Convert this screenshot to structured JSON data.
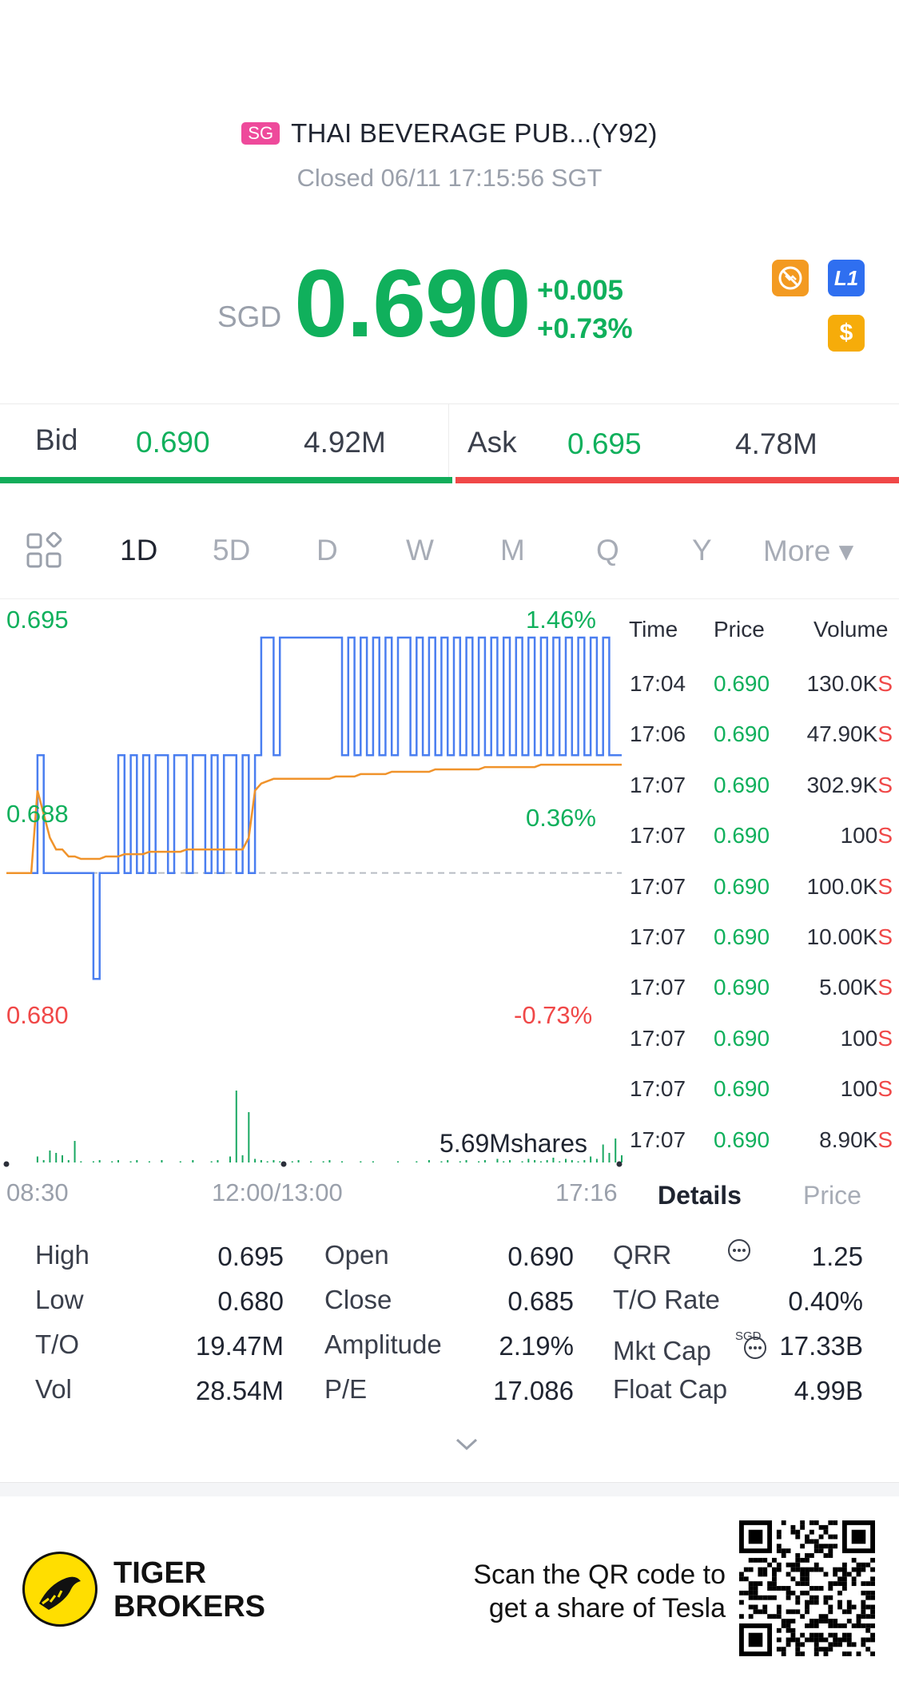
{
  "header": {
    "market_badge": "SG",
    "title": "THAI BEVERAGE PUB...(Y92)",
    "status": "Closed 06/11 17:15:56 SGT"
  },
  "quote": {
    "currency": "SGD",
    "price": "0.690",
    "change": "+0.005",
    "change_pct": "+0.73%",
    "accent_green": "#10b05c",
    "accent_red": "#f04848"
  },
  "badges": {
    "no_short_icon": "no-short-sell-icon",
    "level_icon_label": "L1",
    "dollar_icon_label": "$"
  },
  "bidask": {
    "bid_label": "Bid",
    "bid_price": "0.690",
    "bid_volume": "4.92M",
    "ask_label": "Ask",
    "ask_price": "0.695",
    "ask_volume": "4.78M"
  },
  "tabs": [
    "1D",
    "5D",
    "D",
    "W",
    "M",
    "Q",
    "Y",
    "More ▾"
  ],
  "chart_labels": {
    "y_top": "0.695",
    "y_mid": "0.688",
    "y_bottom": "0.680",
    "pct_top": "1.46%",
    "pct_mid": "0.36%",
    "pct_bottom": "-0.73%",
    "volume_total": "5.69Mshares",
    "x_start": "08:30",
    "x_mid": "12:00/13:00",
    "x_end": "17:16"
  },
  "chart_data": {
    "type": "line",
    "ylim": [
      0.68,
      0.695
    ],
    "prev_close": 0.685,
    "series": [
      {
        "values": [
          0.685,
          0.685,
          0.685,
          0.685,
          0.685,
          0.69,
          0.685,
          0.685,
          0.685,
          0.685,
          0.685,
          0.685,
          0.685,
          0.685,
          0.6805,
          0.685,
          0.685,
          0.685,
          0.69,
          0.685,
          0.69,
          0.685,
          0.69,
          0.685,
          0.69,
          0.69,
          0.685,
          0.69,
          0.69,
          0.685,
          0.69,
          0.69,
          0.685,
          0.69,
          0.685,
          0.69,
          0.69,
          0.685,
          0.69,
          0.685,
          0.69,
          0.695,
          0.695,
          0.69,
          0.695,
          0.695,
          0.695,
          0.695,
          0.695,
          0.695,
          0.695,
          0.695,
          0.695,
          0.695,
          0.69,
          0.695,
          0.69,
          0.695,
          0.69,
          0.695,
          0.69,
          0.695,
          0.69,
          0.695,
          0.695,
          0.69,
          0.695,
          0.69,
          0.695,
          0.69,
          0.695,
          0.69,
          0.695,
          0.69,
          0.695,
          0.69,
          0.695,
          0.69,
          0.695,
          0.69,
          0.695,
          0.69,
          0.695,
          0.69,
          0.695,
          0.69,
          0.695,
          0.69,
          0.695,
          0.69,
          0.695,
          0.69,
          0.695,
          0.69,
          0.695,
          0.69,
          0.695,
          0.69,
          0.69,
          0.69
        ]
      },
      {
        "values": [
          0.685,
          0.685,
          0.685,
          0.685,
          0.685,
          0.6885,
          0.6875,
          0.6865,
          0.686,
          0.686,
          0.6857,
          0.6857,
          0.6856,
          0.6856,
          0.6856,
          0.6856,
          0.6857,
          0.6857,
          0.6857,
          0.6858,
          0.6858,
          0.6858,
          0.6858,
          0.6859,
          0.6859,
          0.6859,
          0.6859,
          0.6859,
          0.6859,
          0.686,
          0.686,
          0.686,
          0.686,
          0.686,
          0.686,
          0.686,
          0.686,
          0.686,
          0.686,
          0.6865,
          0.6885,
          0.6888,
          0.6889,
          0.689,
          0.689,
          0.689,
          0.689,
          0.689,
          0.689,
          0.689,
          0.689,
          0.689,
          0.689,
          0.6891,
          0.6891,
          0.6891,
          0.6891,
          0.6892,
          0.6892,
          0.6892,
          0.6892,
          0.6892,
          0.6893,
          0.6893,
          0.6893,
          0.6893,
          0.6893,
          0.6893,
          0.6893,
          0.6894,
          0.6894,
          0.6894,
          0.6894,
          0.6894,
          0.6894,
          0.6894,
          0.6894,
          0.6895,
          0.6895,
          0.6895,
          0.6895,
          0.6895,
          0.6895,
          0.6895,
          0.6895,
          0.6895,
          0.6896,
          0.6896,
          0.6896,
          0.6896,
          0.6896,
          0.6896,
          0.6896,
          0.6896,
          0.6896,
          0.6896,
          0.6896,
          0.6896,
          0.6896,
          0.6896
        ]
      }
    ],
    "volume": [
      0,
      0,
      0,
      0,
      0,
      0.05,
      0.02,
      0.1,
      0.08,
      0.06,
      0.02,
      0.18,
      0.01,
      0,
      0.01,
      0.02,
      0,
      0.01,
      0.02,
      0,
      0.01,
      0.02,
      0,
      0.01,
      0,
      0.02,
      0,
      0,
      0.01,
      0,
      0.02,
      0,
      0,
      0.01,
      0.02,
      0,
      0.05,
      0.6,
      0.06,
      0.42,
      0.03,
      0.02,
      0.01,
      0.02,
      0.01,
      0,
      0.01,
      0.02,
      0,
      0.01,
      0,
      0.01,
      0.02,
      0,
      0.01,
      0,
      0,
      0.01,
      0,
      0.01,
      0,
      0,
      0,
      0.01,
      0,
      0,
      0.01,
      0,
      0.02,
      0,
      0.01,
      0.02,
      0,
      0.01,
      0.02,
      0,
      0.01,
      0.02,
      0,
      0.03,
      0.01,
      0.02,
      0,
      0.01,
      0.03,
      0.02,
      0.01,
      0.02,
      0.04,
      0.01,
      0.03,
      0.02,
      0.01,
      0.02,
      0.05,
      0.03,
      0.15,
      0.08,
      0.2,
      0.06
    ]
  },
  "trades": {
    "headers": [
      "Time",
      "Price",
      "Volume"
    ],
    "rows": [
      {
        "time": "17:04",
        "price": "0.690",
        "volume": "130.0K",
        "side": "S"
      },
      {
        "time": "17:06",
        "price": "0.690",
        "volume": "47.90K",
        "side": "S"
      },
      {
        "time": "17:07",
        "price": "0.690",
        "volume": "302.9K",
        "side": "S"
      },
      {
        "time": "17:07",
        "price": "0.690",
        "volume": "100",
        "side": "S"
      },
      {
        "time": "17:07",
        "price": "0.690",
        "volume": "100.0K",
        "side": "S"
      },
      {
        "time": "17:07",
        "price": "0.690",
        "volume": "10.00K",
        "side": "S"
      },
      {
        "time": "17:07",
        "price": "0.690",
        "volume": "5.00K",
        "side": "S"
      },
      {
        "time": "17:07",
        "price": "0.690",
        "volume": "100",
        "side": "S"
      },
      {
        "time": "17:07",
        "price": "0.690",
        "volume": "100",
        "side": "S"
      },
      {
        "time": "17:07",
        "price": "0.690",
        "volume": "8.90K",
        "side": "S"
      }
    ],
    "tab_details": "Details",
    "tab_price": "Price"
  },
  "details": {
    "col1": [
      {
        "label": "High",
        "value": "0.695"
      },
      {
        "label": "Low",
        "value": "0.680"
      },
      {
        "label": "T/O",
        "value": "19.47M"
      },
      {
        "label": "Vol",
        "value": "28.54M"
      }
    ],
    "col2": [
      {
        "label": "Open",
        "value": "0.690"
      },
      {
        "label": "Close",
        "value": "0.685"
      },
      {
        "label": "Amplitude",
        "value": "2.19%"
      },
      {
        "label": "P/E",
        "value": "17.086"
      }
    ],
    "col3": [
      {
        "label": "QRR",
        "value": "1.25"
      },
      {
        "label": "T/O Rate",
        "value": "0.40%"
      },
      {
        "label": "Mkt Cap",
        "value": "17.33B"
      },
      {
        "label": "Float Cap",
        "value": "4.99B"
      }
    ],
    "mkt_cap_currency": "SGD"
  },
  "footer": {
    "brand_line1": "TIGER",
    "brand_line2": "BROKERS",
    "promo_line1": "Scan the QR code to",
    "promo_line2": "get a share of Tesla"
  }
}
